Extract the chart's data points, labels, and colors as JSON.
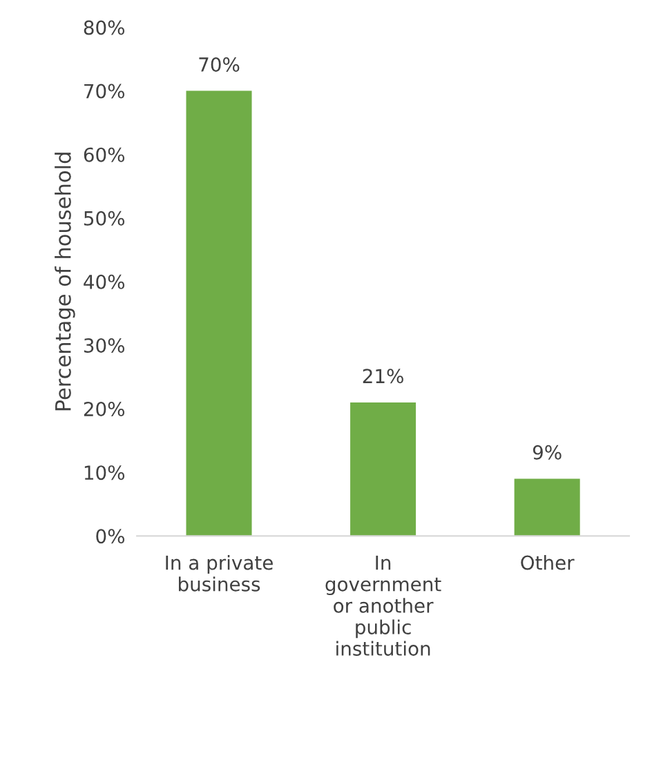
{
  "chart_data": {
    "type": "bar",
    "ylabel": "Percentage of household",
    "categories": [
      "In a private business",
      "In government or another public institution",
      "Other"
    ],
    "values": [
      70,
      21,
      9
    ],
    "color": "#70ad47",
    "value_labels": [
      "70%",
      "21%",
      "9%"
    ],
    "ylim": [
      0,
      80
    ],
    "yticks": [
      {
        "value": 0,
        "label": "0%"
      },
      {
        "value": 10,
        "label": "10%"
      },
      {
        "value": 20,
        "label": "20%"
      },
      {
        "value": 30,
        "label": "30%"
      },
      {
        "value": 40,
        "label": "40%"
      },
      {
        "value": 50,
        "label": "50%"
      },
      {
        "value": 60,
        "label": "60%"
      },
      {
        "value": 70,
        "label": "70%"
      },
      {
        "value": 80,
        "label": "80%"
      }
    ],
    "grid": false,
    "legend": false
  }
}
